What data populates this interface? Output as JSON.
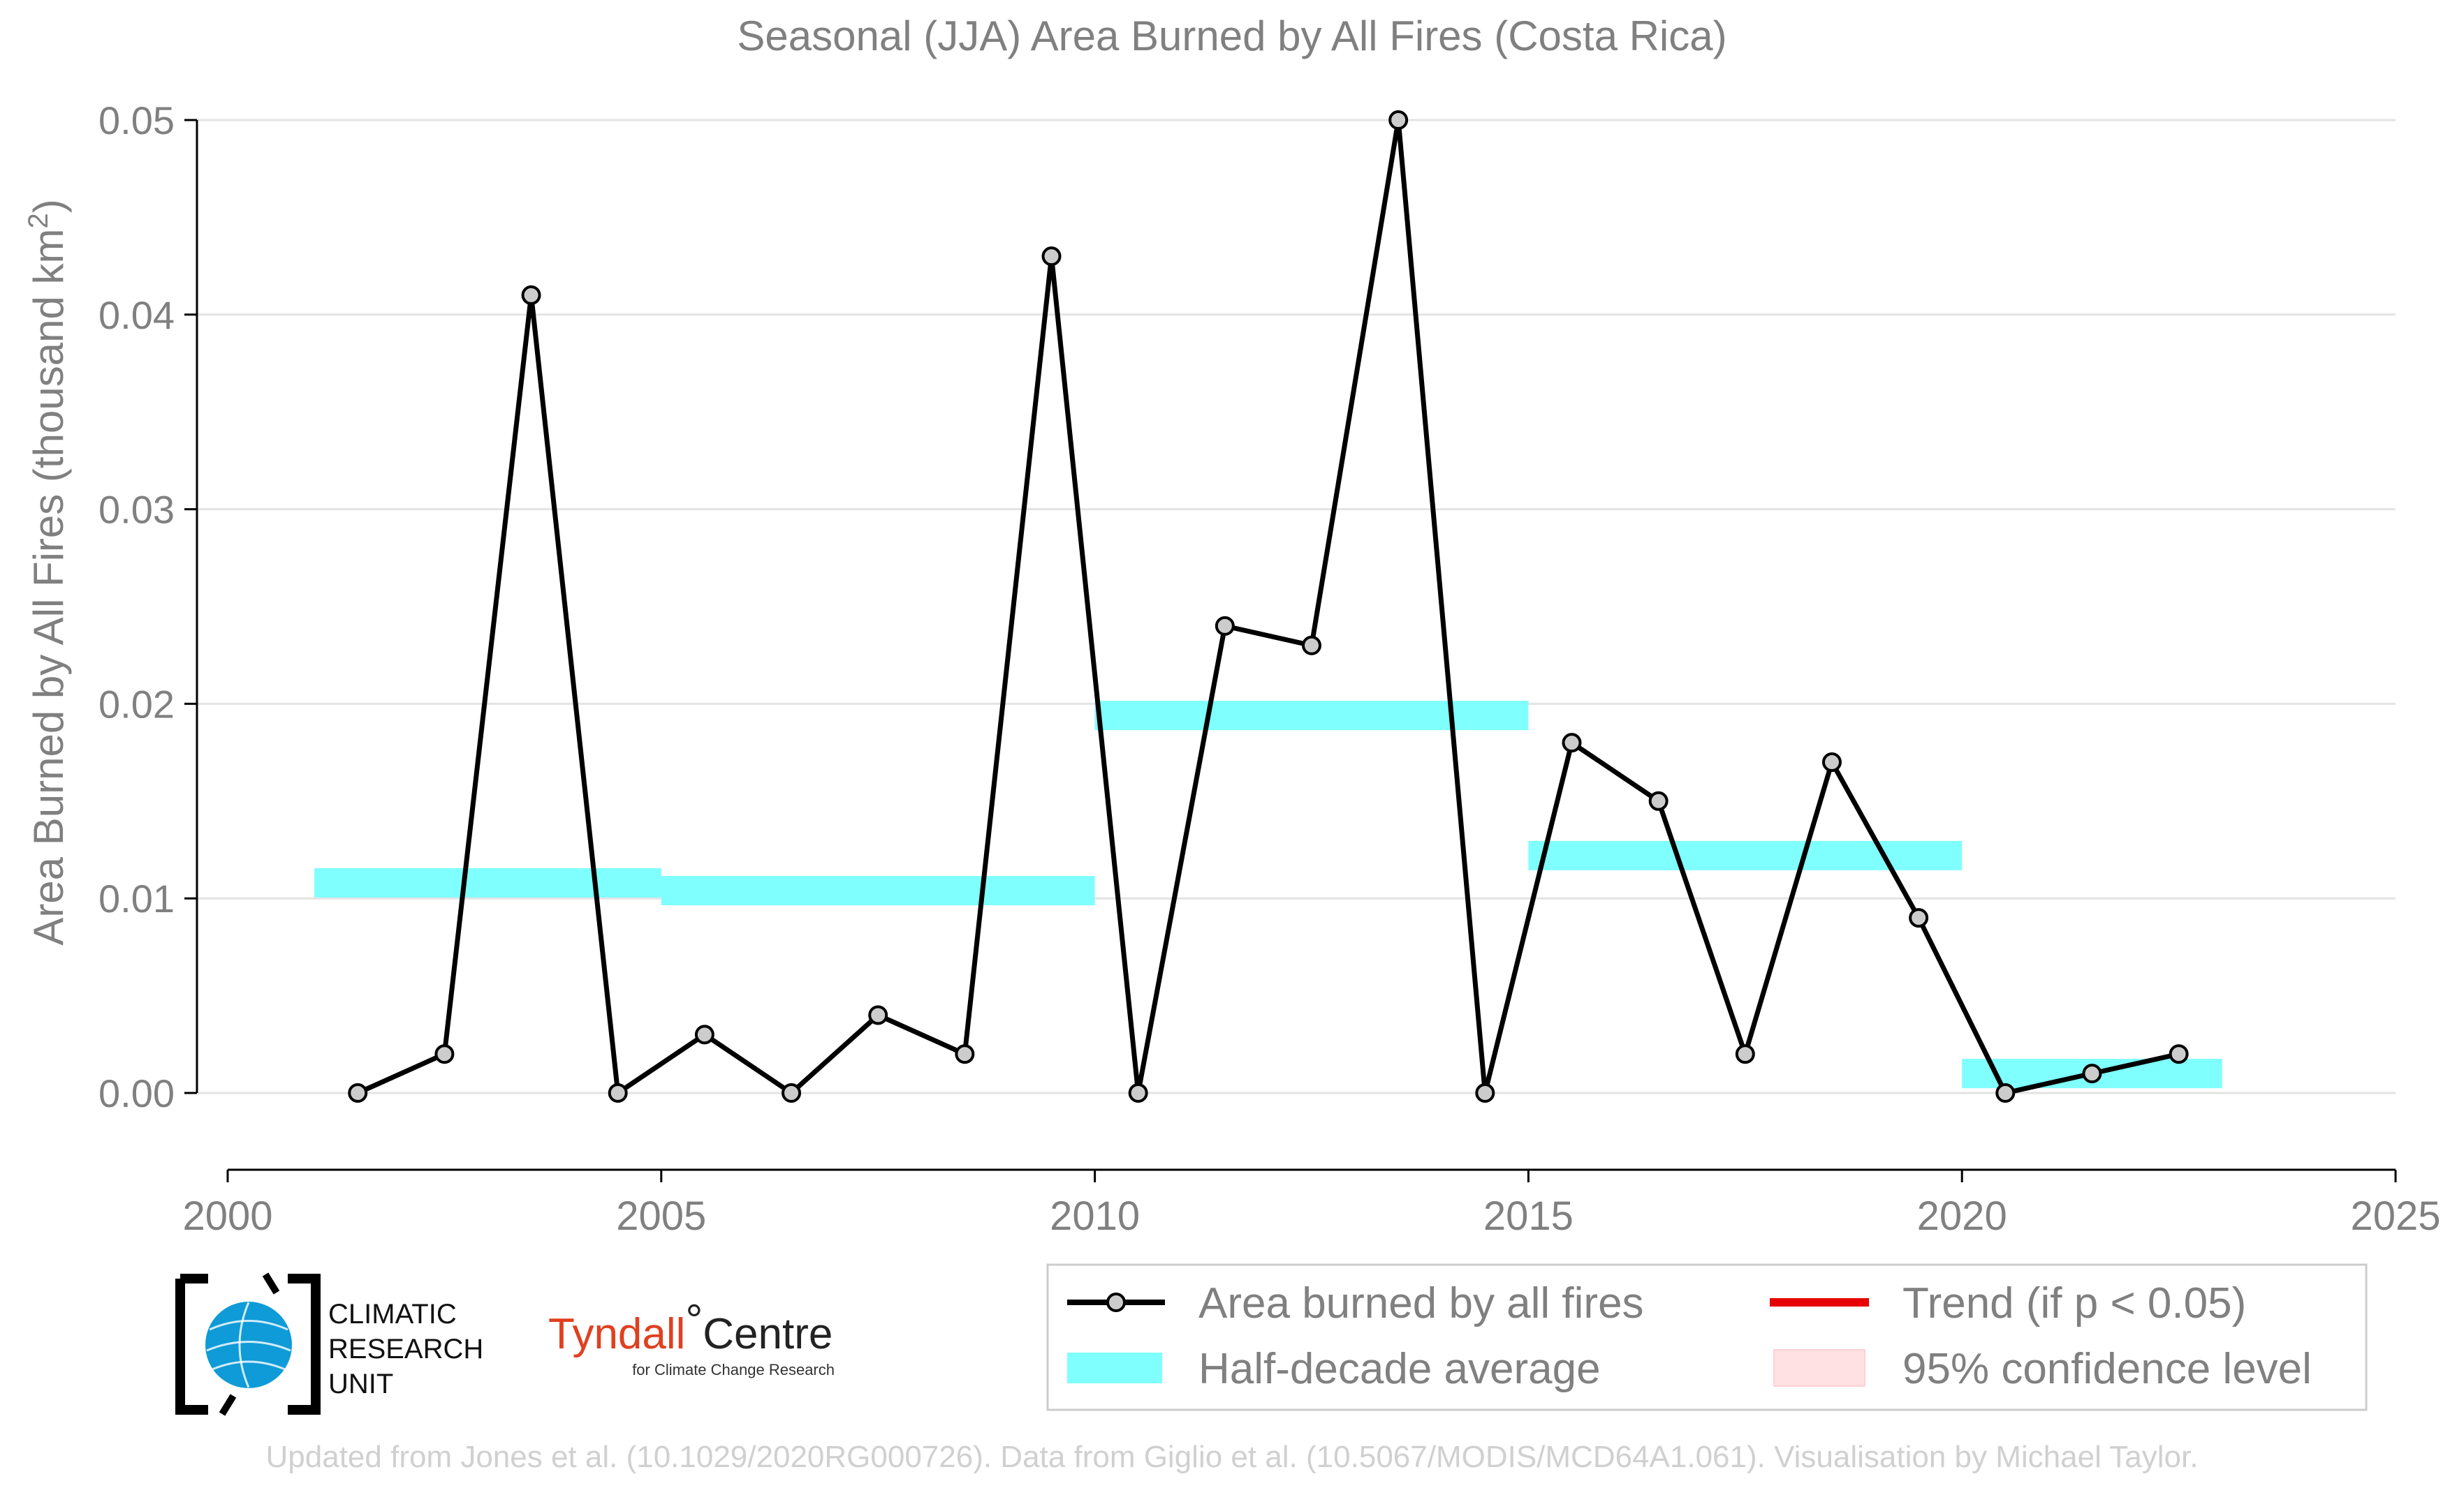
{
  "chart_data": {
    "type": "line",
    "title": "Seasonal (JJA) Area Burned by All Fires (Costa Rica)",
    "ylabel": "Area Burned by All Fires (thousand km",
    "ylabel_sup": "2",
    "ylabel_close": ")",
    "xlim": [
      2000,
      2025
    ],
    "ylim": [
      0,
      0.05
    ],
    "xticks": [
      2000,
      2005,
      2010,
      2015,
      2020,
      2025
    ],
    "yticks": [
      "0.00",
      "0.01",
      "0.02",
      "0.03",
      "0.04",
      "0.05"
    ],
    "grid": "horizontal",
    "series": [
      {
        "name": "Area burned by all fires",
        "color": "#000000",
        "marker_fill": "#cccccc",
        "points": [
          [
            2001.5,
            0.0
          ],
          [
            2002.5,
            0.002
          ],
          [
            2003.5,
            0.041
          ],
          [
            2004.5,
            0.0
          ],
          [
            2005.5,
            0.003
          ],
          [
            2006.5,
            0.0
          ],
          [
            2007.5,
            0.004
          ],
          [
            2008.5,
            0.002
          ],
          [
            2009.5,
            0.043
          ],
          [
            2010.5,
            0.0
          ],
          [
            2011.5,
            0.024
          ],
          [
            2012.5,
            0.023
          ],
          [
            2013.5,
            0.05
          ],
          [
            2014.5,
            0.0
          ],
          [
            2015.5,
            0.018
          ],
          [
            2016.5,
            0.015
          ],
          [
            2017.5,
            0.002
          ],
          [
            2018.5,
            0.017
          ],
          [
            2019.5,
            0.009
          ],
          [
            2020.5,
            0.0
          ],
          [
            2021.5,
            0.001
          ],
          [
            2022.5,
            0.002
          ]
        ]
      }
    ],
    "half_decade_averages": {
      "name": "Half-decade average",
      "color": "#7ffffe",
      "segments": [
        {
          "x0": 2001,
          "x1": 2005,
          "y": 0.0108
        },
        {
          "x0": 2005,
          "x1": 2010,
          "y": 0.0104
        },
        {
          "x0": 2010,
          "x1": 2015,
          "y": 0.0194
        },
        {
          "x0": 2015,
          "x1": 2020,
          "y": 0.0122
        },
        {
          "x0": 2020,
          "x1": 2023,
          "y": 0.001
        }
      ]
    },
    "legend": {
      "placement": "bottom-right",
      "entries": [
        {
          "label": "Area burned by all fires",
          "kind": "line-marker",
          "color": "#000000"
        },
        {
          "label": "Trend (if p < 0.05)",
          "kind": "line",
          "color": "#e60000"
        },
        {
          "label": "Half-decade average",
          "kind": "band",
          "color": "#7ffffe"
        },
        {
          "label": "95% confidence level",
          "kind": "patch",
          "color": "#ffe0e3"
        }
      ]
    }
  },
  "logos": {
    "cru": [
      "CLIMATIC",
      "RESEARCH",
      "UNIT"
    ],
    "tyndall_main": "Tyndall",
    "tyndall_degree": "°",
    "tyndall_centre": "Centre",
    "tyndall_sub": "for Climate Change Research"
  },
  "footer": "Updated from Jones et al. (10.1029/2020RG000726). Data from Giglio et al. (10.5067/MODIS/MCD64A1.061). Visualisation by Michael Taylor."
}
